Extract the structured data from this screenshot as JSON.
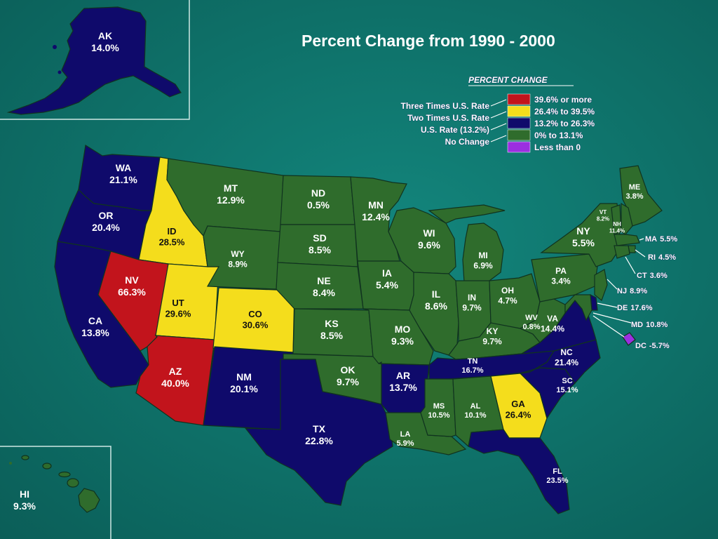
{
  "title": "Percent Change from 1990 - 2000",
  "legend": {
    "title": "PERCENT CHANGE",
    "left_labels": [
      "Three Times U.S. Rate",
      "Two Times U.S. Rate",
      "U.S. Rate (13.2%)",
      "No Change"
    ],
    "items": [
      {
        "label": "39.6% or more",
        "color": "#c2141c"
      },
      {
        "label": "26.4% to 39.5%",
        "color": "#f4dd1c"
      },
      {
        "label": "13.2% to 26.3%",
        "color": "#0f0a6b"
      },
      {
        "label": "0% to 13.1%",
        "color": "#2f6c2c"
      },
      {
        "label": "Less than 0",
        "color": "#9b2fe0"
      }
    ]
  },
  "states": {
    "AK": {
      "name": "AK",
      "value": "14.0%",
      "color": "#0f0a6b"
    },
    "HI": {
      "name": "HI",
      "value": "9.3%",
      "color": "#2f6c2c"
    },
    "WA": {
      "name": "WA",
      "value": "21.1%",
      "color": "#0f0a6b"
    },
    "OR": {
      "name": "OR",
      "value": "20.4%",
      "color": "#0f0a6b"
    },
    "CA": {
      "name": "CA",
      "value": "13.8%",
      "color": "#0f0a6b"
    },
    "ID": {
      "name": "ID",
      "value": "28.5%",
      "color": "#f4dd1c"
    },
    "NV": {
      "name": "NV",
      "value": "66.3%",
      "color": "#c2141c"
    },
    "AZ": {
      "name": "AZ",
      "value": "40.0%",
      "color": "#c2141c"
    },
    "UT": {
      "name": "UT",
      "value": "29.6%",
      "color": "#f4dd1c"
    },
    "MT": {
      "name": "MT",
      "value": "12.9%",
      "color": "#2f6c2c"
    },
    "WY": {
      "name": "WY",
      "value": "8.9%",
      "color": "#2f6c2c"
    },
    "CO": {
      "name": "CO",
      "value": "30.6%",
      "color": "#f4dd1c"
    },
    "NM": {
      "name": "NM",
      "value": "20.1%",
      "color": "#0f0a6b"
    },
    "ND": {
      "name": "ND",
      "value": "0.5%",
      "color": "#2f6c2c"
    },
    "SD": {
      "name": "SD",
      "value": "8.5%",
      "color": "#2f6c2c"
    },
    "NE": {
      "name": "NE",
      "value": "8.4%",
      "color": "#2f6c2c"
    },
    "KS": {
      "name": "KS",
      "value": "8.5%",
      "color": "#2f6c2c"
    },
    "OK": {
      "name": "OK",
      "value": "9.7%",
      "color": "#2f6c2c"
    },
    "TX": {
      "name": "TX",
      "value": "22.8%",
      "color": "#0f0a6b"
    },
    "MN": {
      "name": "MN",
      "value": "12.4%",
      "color": "#2f6c2c"
    },
    "IA": {
      "name": "IA",
      "value": "5.4%",
      "color": "#2f6c2c"
    },
    "MO": {
      "name": "MO",
      "value": "9.3%",
      "color": "#2f6c2c"
    },
    "AR": {
      "name": "AR",
      "value": "13.7%",
      "color": "#0f0a6b"
    },
    "LA": {
      "name": "LA",
      "value": "5.9%",
      "color": "#2f6c2c"
    },
    "WI": {
      "name": "WI",
      "value": "9.6%",
      "color": "#2f6c2c"
    },
    "IL": {
      "name": "IL",
      "value": "8.6%",
      "color": "#2f6c2c"
    },
    "MI": {
      "name": "MI",
      "value": "6.9%",
      "color": "#2f6c2c"
    },
    "IN": {
      "name": "IN",
      "value": "9.7%",
      "color": "#2f6c2c"
    },
    "OH": {
      "name": "OH",
      "value": "4.7%",
      "color": "#2f6c2c"
    },
    "KY": {
      "name": "KY",
      "value": "9.7%",
      "color": "#2f6c2c"
    },
    "TN": {
      "name": "TN",
      "value": "16.7%",
      "color": "#0f0a6b"
    },
    "MS": {
      "name": "MS",
      "value": "10.5%",
      "color": "#2f6c2c"
    },
    "AL": {
      "name": "AL",
      "value": "10.1%",
      "color": "#2f6c2c"
    },
    "GA": {
      "name": "GA",
      "value": "26.4%",
      "color": "#f4dd1c"
    },
    "FL": {
      "name": "FL",
      "value": "23.5%",
      "color": "#0f0a6b"
    },
    "SC": {
      "name": "SC",
      "value": "15.1%",
      "color": "#0f0a6b"
    },
    "NC": {
      "name": "NC",
      "value": "21.4%",
      "color": "#0f0a6b"
    },
    "VA": {
      "name": "VA",
      "value": "14.4%",
      "color": "#0f0a6b"
    },
    "WV": {
      "name": "WV",
      "value": "0.8%",
      "color": "#2f6c2c"
    },
    "PA": {
      "name": "PA",
      "value": "3.4%",
      "color": "#2f6c2c"
    },
    "NY": {
      "name": "NY",
      "value": "5.5%",
      "color": "#2f6c2c"
    },
    "ME": {
      "name": "ME",
      "value": "3.8%",
      "color": "#2f6c2c"
    },
    "VT": {
      "name": "VT",
      "value": "8.2%",
      "color": "#2f6c2c"
    },
    "NH": {
      "name": "NH",
      "value": "11.4%",
      "color": "#2f6c2c"
    },
    "MA": {
      "name": "MA",
      "value": "5.5%",
      "color": "#2f6c2c"
    },
    "RI": {
      "name": "RI",
      "value": "4.5%",
      "color": "#2f6c2c"
    },
    "CT": {
      "name": "CT",
      "value": "3.6%",
      "color": "#2f6c2c"
    },
    "NJ": {
      "name": "NJ",
      "value": "8.9%",
      "color": "#2f6c2c"
    },
    "DE": {
      "name": "DE",
      "value": "17.6%",
      "color": "#0f0a6b"
    },
    "MD": {
      "name": "MD",
      "value": "10.8%",
      "color": "#2f6c2c"
    },
    "DC": {
      "name": "DC",
      "value": "-5.7%",
      "color": "#9b2fe0"
    }
  }
}
